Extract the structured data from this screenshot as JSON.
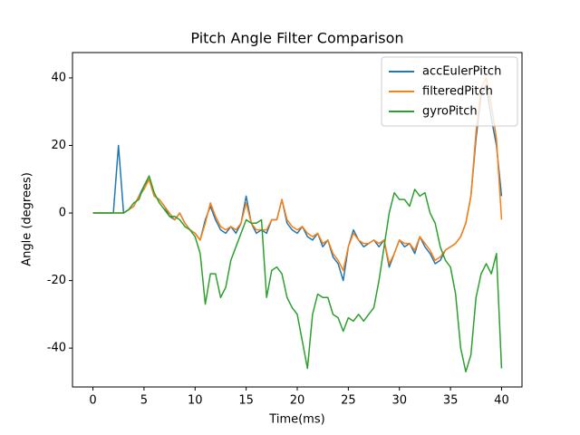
{
  "chart_data": {
    "type": "line",
    "title": "Pitch Angle Filter Comparison",
    "x_label": "Time(ms)",
    "y_label": "Angle (degrees)",
    "x": [
      0,
      0.5,
      1,
      1.5,
      2,
      2.5,
      3,
      3.5,
      4,
      4.5,
      5,
      5.5,
      6,
      6.5,
      7,
      7.5,
      8,
      8.5,
      9,
      9.5,
      10,
      10.5,
      11,
      11.5,
      12,
      12.5,
      13,
      13.5,
      14,
      14.5,
      15,
      15.5,
      16,
      16.5,
      17,
      17.5,
      18,
      18.5,
      19,
      19.5,
      20,
      20.5,
      21,
      21.5,
      22,
      22.5,
      23,
      23.5,
      24,
      24.5,
      25,
      25.5,
      26,
      26.5,
      27,
      27.5,
      28,
      28.5,
      29,
      29.5,
      30,
      30.5,
      31,
      31.5,
      32,
      32.5,
      33,
      33.5,
      34,
      34.5,
      35,
      35.5,
      36,
      36.5,
      37,
      37.5,
      38,
      38.5,
      39,
      39.5,
      40
    ],
    "series": [
      {
        "name": "accEulerPitch",
        "color": "#1f77b4",
        "values": [
          0,
          0,
          0,
          0,
          0,
          20,
          0,
          1,
          2,
          5,
          8,
          10,
          5,
          4,
          2,
          -1,
          -2,
          0,
          -3,
          -5,
          -6,
          -8,
          -2,
          2,
          -2,
          -5,
          -6,
          -4,
          -6,
          -3,
          5,
          -3,
          -6,
          -5,
          -6,
          -2,
          -2,
          4,
          -3,
          -5,
          -6,
          -4,
          -7,
          -8,
          -6,
          -10,
          -8,
          -13,
          -15,
          -20,
          -10,
          -5,
          -8,
          -10,
          -9,
          -8,
          -10,
          -8,
          -16,
          -12,
          -8,
          -10,
          -9,
          -12,
          -7,
          -10,
          -12,
          -15,
          -14,
          -11,
          -10,
          -9,
          -7,
          -3,
          5,
          22,
          35,
          38,
          28,
          20,
          5
        ]
      },
      {
        "name": "filteredPitch",
        "color": "#ff7f0e",
        "values": [
          0,
          0,
          0,
          0,
          0,
          0,
          0,
          1,
          2,
          5,
          7,
          10,
          5,
          4,
          2,
          0,
          -2,
          0,
          -3,
          -5,
          -6,
          -8,
          -3,
          3,
          -1,
          -4,
          -5,
          -4,
          -5,
          -3,
          3,
          -3,
          -5,
          -5,
          -5,
          -2,
          -2,
          4,
          -2,
          -4,
          -5,
          -4,
          -6,
          -7,
          -6,
          -9,
          -8,
          -12,
          -14,
          -17,
          -10,
          -6,
          -8,
          -9,
          -9,
          -8,
          -9,
          -8,
          -15,
          -12,
          -8,
          -9,
          -9,
          -11,
          -7,
          -9,
          -11,
          -14,
          -13,
          -11,
          -10,
          -9,
          -7,
          -3,
          5,
          24,
          37,
          40,
          32,
          22,
          -2
        ]
      },
      {
        "name": "gyroPitch",
        "color": "#2ca02c",
        "values": [
          0,
          0,
          0,
          0,
          0,
          0,
          0,
          1,
          3,
          4,
          8,
          11,
          6,
          3,
          1,
          -1,
          -1,
          -2,
          -4,
          -5,
          -7,
          -12,
          -27,
          -18,
          -18,
          -25,
          -22,
          -14,
          -10,
          -6,
          -2,
          -3,
          -3,
          -2,
          -25,
          -17,
          -16,
          -18,
          -25,
          -28,
          -30,
          -38,
          -46,
          -30,
          -24,
          -25,
          -25,
          -30,
          -31,
          -35,
          -31,
          -32,
          -30,
          -32,
          -30,
          -28,
          -20,
          -10,
          0,
          6,
          4,
          4,
          2,
          7,
          5,
          6,
          0,
          -3,
          -10,
          -14,
          -16,
          -24,
          -40,
          -47,
          -42,
          -25,
          -18,
          -15,
          -18,
          -12,
          -46
        ]
      }
    ],
    "xlim": [
      -2,
      42
    ],
    "ylim": [
      -51.5,
      47.5
    ],
    "xticks": [
      0,
      5,
      10,
      15,
      20,
      25,
      30,
      35,
      40
    ],
    "yticks": [
      -40,
      -20,
      0,
      20,
      40
    ],
    "legend": "upper right"
  }
}
